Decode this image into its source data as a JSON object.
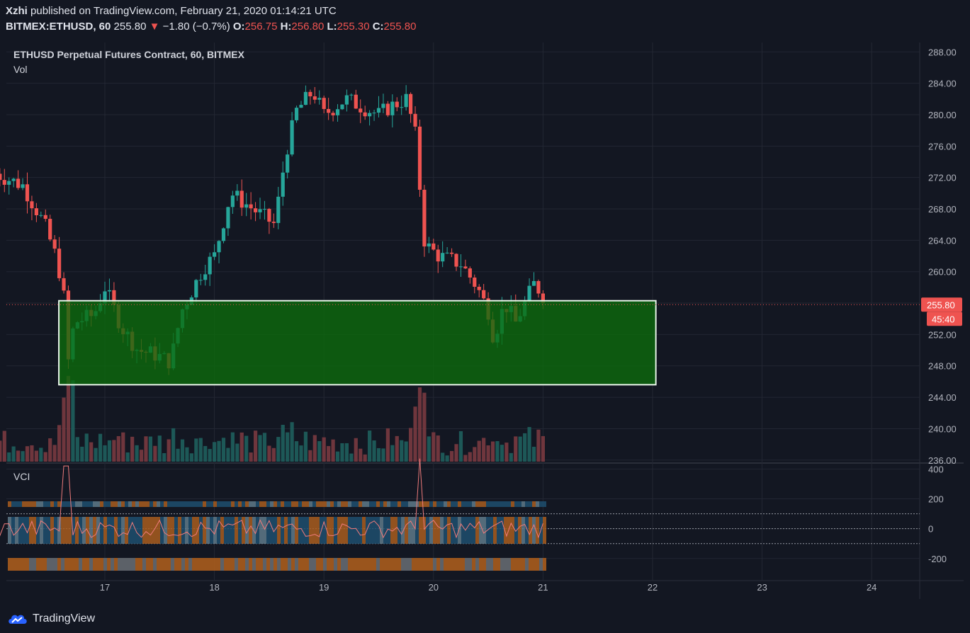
{
  "header": {
    "author": "Xzhi",
    "published_text": "published on TradingView.com, February 21, 2020 01:14:21 UTC",
    "symbol": "BITMEX:ETHUSD, 60",
    "last": "255.80",
    "change_arrow": "▼",
    "change": "−1.80 (−0.7%)",
    "o_label": "O:",
    "o": "256.75",
    "h_label": "H:",
    "h": "256.80",
    "l_label": "L:",
    "l": "255.30",
    "c_label": "C:",
    "c": "255.80"
  },
  "chart_data": {
    "type": "candlestick",
    "title": "ETHUSD Perpetual Futures Contract, 60, BITMEX",
    "volume_label": "Vol",
    "indicator_label": "VCI",
    "x_tick_labels": [
      "17",
      "18",
      "19",
      "20",
      "21",
      "22",
      "23",
      "24"
    ],
    "y_tick_labels": [
      "288.00",
      "284.00",
      "280.00",
      "276.00",
      "272.00",
      "268.00",
      "264.00",
      "260.00",
      "252.00",
      "248.00",
      "244.00",
      "240.00",
      "236.00"
    ],
    "ylim": [
      235.8,
      289.2
    ],
    "price_tag": "255.80",
    "countdown_tag": "45:40",
    "vci_tick_labels": [
      "400",
      "200",
      "0",
      "-200"
    ],
    "vci_ylim": [
      -310,
      430
    ],
    "vci_levels": [
      100,
      0,
      -100
    ],
    "demand_zone": {
      "low": 245.6,
      "high": 256.3,
      "x_start": 16.58,
      "x_end": 22.03,
      "color": "#0b6b0b"
    },
    "path_x": [
      16.0,
      16.25,
      16.45,
      16.55,
      16.62,
      16.66,
      16.72,
      16.9,
      17.0,
      17.15,
      17.3,
      17.45,
      17.6,
      17.7,
      17.9,
      18.0,
      18.15,
      18.35,
      18.55,
      18.65,
      18.75,
      18.9,
      19.0,
      19.2,
      19.35,
      19.5,
      19.6,
      19.75,
      19.83,
      19.88,
      19.92,
      20.05,
      20.25,
      20.4,
      20.5,
      20.55,
      20.65,
      20.75,
      20.85,
      20.92,
      21.0,
      21.05
    ],
    "path_close": [
      272.5,
      271.0,
      266.0,
      262.0,
      258.0,
      248.0,
      253.5,
      254.5,
      258.0,
      253.0,
      250.0,
      249.5,
      248.5,
      255.0,
      260.5,
      262.0,
      270.0,
      268.0,
      266.0,
      275.0,
      280.5,
      283.0,
      280.0,
      282.0,
      281.0,
      280.0,
      281.0,
      282.0,
      278.0,
      270.0,
      263.5,
      262.0,
      261.0,
      258.0,
      255.0,
      251.5,
      256.0,
      253.5,
      256.5,
      258.5,
      257.0,
      255.8
    ],
    "up_color": "#26a69a",
    "down_color": "#ef5350"
  },
  "footer": {
    "logo_text": "TradingView"
  }
}
